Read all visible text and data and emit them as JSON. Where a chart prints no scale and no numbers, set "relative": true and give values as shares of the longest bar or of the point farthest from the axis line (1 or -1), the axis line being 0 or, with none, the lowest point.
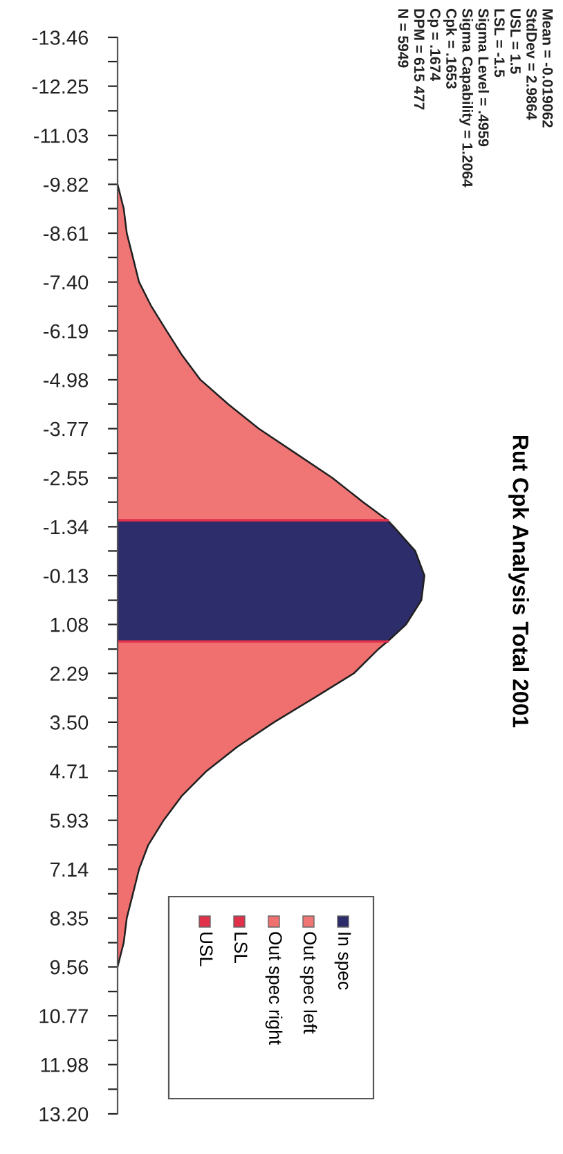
{
  "chart_data": {
    "type": "area",
    "orientation": "horizontal",
    "relative": true,
    "title": "Rut Cpk Analysis Total 2001",
    "annotations": [
      "Mean = -0.019062",
      "StdDev = 2.9864",
      "USL = 1.5",
      "LSL = -1.5",
      "Sigma Level = .4959",
      "Sigma Capability = 1.2064",
      "Cpk = .1653",
      "Cp = .1674",
      "DPM = 615 477",
      "N = 5949"
    ],
    "ylim": [
      13.2,
      -13.46
    ],
    "yticks": [
      -13.46,
      {
        "value": -12.86,
        "label": null
      },
      -12.25,
      {
        "value": -11.64,
        "label": null
      },
      -11.03,
      {
        "value": -10.43,
        "label": null
      },
      -9.82,
      {
        "value": -9.22,
        "label": null
      },
      -8.61,
      {
        "value": -8.01,
        "label": null
      },
      {
        "value": -7.4,
        "label": "-7.40"
      },
      {
        "value": -6.8,
        "label": null
      },
      -6.19,
      {
        "value": -5.59,
        "label": null
      },
      -4.98,
      {
        "value": -4.38,
        "label": null
      },
      -3.77,
      {
        "value": -3.16,
        "label": null
      },
      -2.55,
      {
        "value": -1.95,
        "label": null
      },
      -1.34,
      {
        "value": -0.74,
        "label": null
      },
      -0.13,
      {
        "value": 0.48,
        "label": null
      },
      1.08,
      {
        "value": 1.69,
        "label": null
      },
      2.29,
      {
        "value": 2.9,
        "label": null
      },
      {
        "value": 3.5,
        "label": "3.50"
      },
      {
        "value": 4.11,
        "label": null
      },
      4.71,
      {
        "value": 5.32,
        "label": null
      },
      5.93,
      {
        "value": 6.54,
        "label": null
      },
      7.14,
      {
        "value": 7.75,
        "label": null
      },
      8.35,
      {
        "value": 8.96,
        "label": null
      },
      9.56,
      {
        "value": 10.17,
        "label": null
      },
      10.77,
      {
        "value": 11.38,
        "label": null
      },
      11.98,
      {
        "value": 12.59,
        "label": null
      },
      {
        "value": 13.2,
        "label": "13.20"
      }
    ],
    "series": [
      {
        "name": "In spec",
        "color": "#2e2d6b",
        "x": [
          -1.5,
          -1.34,
          -0.74,
          -0.13,
          0.48,
          1.08,
          1.5
        ],
        "values": [
          0.88,
          0.9,
          0.97,
          1.0,
          0.99,
          0.94,
          0.88
        ]
      },
      {
        "name": "Out spec left",
        "color": "#f07676",
        "x": [
          -9.82,
          -9.22,
          -8.61,
          -8.01,
          -7.4,
          -6.8,
          -6.19,
          -5.59,
          -4.98,
          -4.38,
          -3.77,
          -3.16,
          -2.55,
          -1.95,
          -1.5
        ],
        "values": [
          0.0,
          0.02,
          0.03,
          0.05,
          0.07,
          0.11,
          0.16,
          0.21,
          0.27,
          0.36,
          0.46,
          0.58,
          0.7,
          0.8,
          0.88
        ]
      },
      {
        "name": "Out spec right",
        "color": "#f07070",
        "x": [
          1.5,
          1.69,
          2.29,
          2.9,
          3.5,
          4.11,
          4.71,
          5.32,
          5.93,
          6.54,
          7.14,
          7.75,
          8.35,
          8.96,
          9.56
        ],
        "values": [
          0.88,
          0.85,
          0.77,
          0.64,
          0.51,
          0.39,
          0.29,
          0.21,
          0.15,
          0.1,
          0.07,
          0.05,
          0.03,
          0.02,
          0.0
        ]
      }
    ],
    "ref_lines": [
      {
        "axis": "y",
        "value": -1.5,
        "label": "LSL",
        "color": "#e0304a"
      },
      {
        "axis": "y",
        "value": 1.5,
        "label": "USL",
        "color": "#e0304a"
      }
    ],
    "legend": "bottom right",
    "grid": false
  }
}
